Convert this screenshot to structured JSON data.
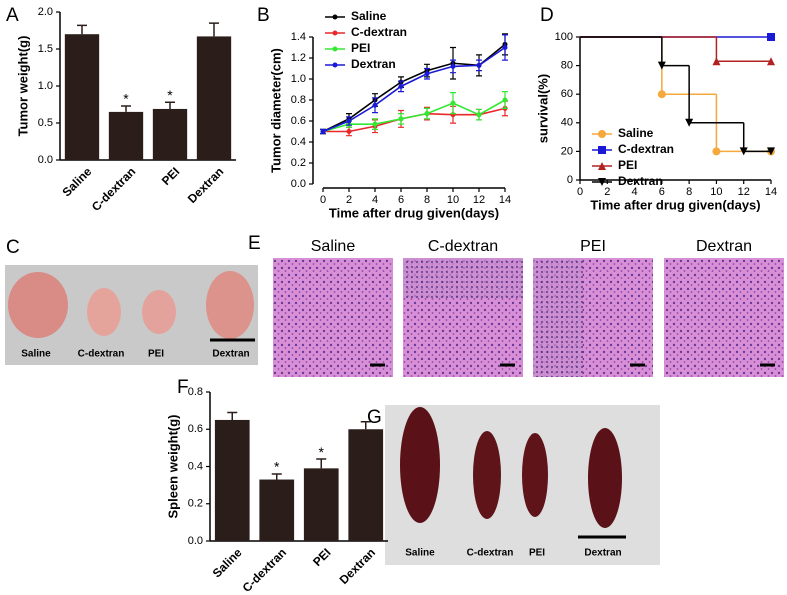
{
  "chart_data": [
    {
      "type": "bar",
      "panel": "A",
      "ylabel": "Tumor weight(g)",
      "categories": [
        "Saline",
        "C-dextran",
        "PEI",
        "Dextran"
      ],
      "values": [
        1.7,
        0.65,
        0.69,
        1.67
      ],
      "errors": [
        0.12,
        0.08,
        0.09,
        0.18
      ],
      "significance": [
        null,
        "*",
        "*",
        null
      ],
      "color": "#2b1d1a",
      "ylim": [
        0,
        2
      ],
      "yticks": [
        {
          "value": 0,
          "label": "0.0"
        },
        {
          "value": 0.5,
          "label": "0.5"
        },
        {
          "value": 1,
          "label": "1.0"
        },
        {
          "value": 1.5,
          "label": "1.5"
        },
        {
          "value": 2,
          "label": "2.0"
        }
      ]
    },
    {
      "type": "line",
      "panel": "B",
      "ylabel": "Tumor diameter(cm)",
      "xlabel": "Time after drug given(days)",
      "x": [
        0,
        2,
        4,
        6,
        8,
        10,
        12,
        14
      ],
      "legend": "upper left",
      "series": [
        {
          "name": "Saline",
          "color": "#000000",
          "values": [
            0.5,
            0.62,
            0.8,
            0.97,
            1.08,
            1.15,
            1.13,
            1.33
          ],
          "errors": [
            0.02,
            0.05,
            0.06,
            0.05,
            0.06,
            0.15,
            0.1,
            0.1
          ]
        },
        {
          "name": "C-dextran",
          "color": "#e8282a",
          "values": [
            0.5,
            0.5,
            0.55,
            0.62,
            0.67,
            0.66,
            0.66,
            0.72
          ],
          "errors": [
            0.02,
            0.04,
            0.06,
            0.08,
            0.06,
            0.08,
            0.05,
            0.07
          ]
        },
        {
          "name": "PEI",
          "color": "#33e833",
          "values": [
            0.5,
            0.57,
            0.57,
            0.62,
            0.67,
            0.77,
            0.66,
            0.8
          ],
          "errors": [
            0.02,
            0.03,
            0.05,
            0.05,
            0.05,
            0.1,
            0.05,
            0.08
          ]
        },
        {
          "name": "Dextran",
          "color": "#1a1ad6",
          "values": [
            0.5,
            0.6,
            0.75,
            0.93,
            1.05,
            1.12,
            1.13,
            1.3
          ],
          "errors": [
            0.02,
            0.04,
            0.07,
            0.05,
            0.05,
            0.06,
            0.05,
            0.12
          ]
        }
      ],
      "xlim": [
        0,
        14
      ],
      "xticks": [
        0,
        2,
        4,
        6,
        8,
        10,
        12,
        14
      ],
      "ylim": [
        0,
        1.4
      ],
      "yticks": [
        {
          "value": 0,
          "label": "0.0"
        },
        {
          "value": 0.2,
          "label": "0.2"
        },
        {
          "value": 0.4,
          "label": "0.4"
        },
        {
          "value": 0.6,
          "label": "0.6"
        },
        {
          "value": 0.8,
          "label": "0.8"
        },
        {
          "value": 1,
          "label": "1.0"
        },
        {
          "value": 1.2,
          "label": "1.2"
        },
        {
          "value": 1.4,
          "label": "1.4"
        }
      ]
    },
    {
      "type": "step",
      "panel": "D",
      "ylabel": "survival(%)",
      "xlabel": "Time after drug given(days)",
      "legend": "lower left",
      "series": [
        {
          "name": "Saline",
          "color": "#f5a83b",
          "marker": "circle",
          "x": [
            0,
            6,
            10,
            14
          ],
          "values": [
            100,
            60,
            20,
            20
          ]
        },
        {
          "name": "C-dextran",
          "color": "#1a1ad6",
          "marker": "square",
          "x": [
            0,
            14
          ],
          "values": [
            100,
            100
          ]
        },
        {
          "name": "PEI",
          "color": "#b22222",
          "marker": "triangle-up",
          "x": [
            0,
            10,
            14
          ],
          "values": [
            100,
            83,
            83
          ]
        },
        {
          "name": "Dextran",
          "color": "#000000",
          "marker": "triangle-down",
          "x": [
            0,
            6,
            8,
            12,
            14
          ],
          "values": [
            100,
            80,
            40,
            20,
            20
          ]
        }
      ],
      "xlim": [
        0,
        14
      ],
      "xticks": [
        0,
        2,
        4,
        6,
        8,
        10,
        12,
        14
      ],
      "ylim": [
        0,
        100
      ],
      "yticks": [
        0,
        20,
        40,
        60,
        80,
        100
      ]
    },
    {
      "type": "bar",
      "panel": "F",
      "ylabel": "Spleen weight(g)",
      "categories": [
        "Saline",
        "C-dextran",
        "PEI",
        "Dextran"
      ],
      "values": [
        0.65,
        0.33,
        0.39,
        0.6
      ],
      "errors": [
        0.04,
        0.03,
        0.05,
        0.04
      ],
      "significance": [
        null,
        "*",
        "*",
        null
      ],
      "color": "#2b1d1a",
      "ylim": [
        0,
        0.8
      ],
      "yticks": [
        {
          "value": 0,
          "label": "0.0"
        },
        {
          "value": 0.2,
          "label": "0.2"
        },
        {
          "value": 0.4,
          "label": "0.4"
        },
        {
          "value": 0.6,
          "label": "0.6"
        },
        {
          "value": 0.8,
          "label": "0.8"
        }
      ]
    }
  ],
  "photos": [
    {
      "panel": "C",
      "labels": [
        "Saline",
        "C-dextran",
        "PEI",
        "Dextran"
      ]
    },
    {
      "panel": "E",
      "labels": [
        "Saline",
        "C-dextran",
        "PEI",
        "Dextran"
      ]
    },
    {
      "panel": "G",
      "labels": [
        "Saline",
        "C-dextran",
        "PEI",
        "Dextran"
      ]
    }
  ]
}
